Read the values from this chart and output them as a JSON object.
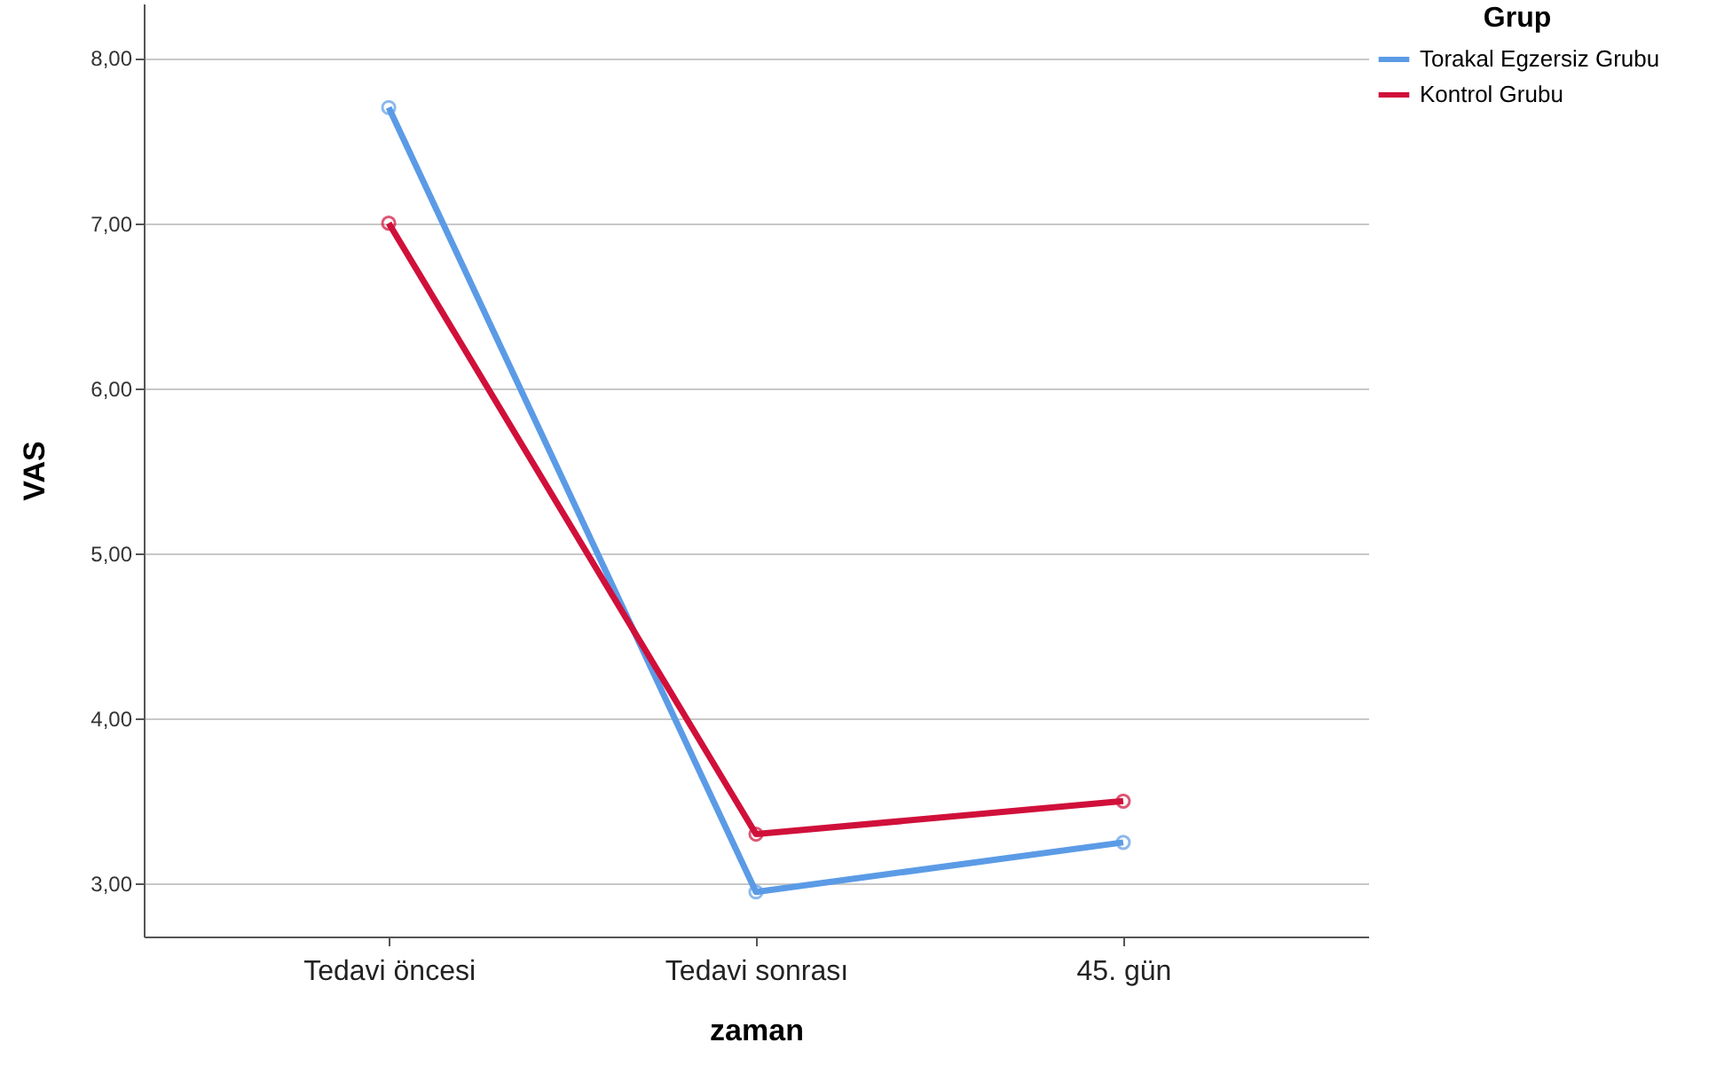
{
  "chart_data": {
    "type": "line",
    "xlabel": "zaman",
    "ylabel": "VAS",
    "legend_title": "Grup",
    "categories": [
      "Tedavi öncesi",
      "Tedavi sonrası",
      "45. gün"
    ],
    "series": [
      {
        "name": "Torakal Egzersiz Grubu",
        "color": "#5b9be6",
        "values": [
          7.7,
          2.95,
          3.25
        ]
      },
      {
        "name": "Kontrol Grubu",
        "color": "#d0103a",
        "values": [
          7.0,
          3.3,
          3.5
        ]
      }
    ],
    "ylim": [
      2.68,
      8.33
    ],
    "yticks": [
      {
        "value": 3,
        "label": "3,00"
      },
      {
        "value": 4,
        "label": "4,00"
      },
      {
        "value": 5,
        "label": "5,00"
      },
      {
        "value": 6,
        "label": "6,00"
      },
      {
        "value": 7,
        "label": "7,00"
      },
      {
        "value": 8,
        "label": "8,00"
      }
    ],
    "grid": "y",
    "legend": "top right",
    "marker": "circle",
    "line_style": "solid"
  }
}
